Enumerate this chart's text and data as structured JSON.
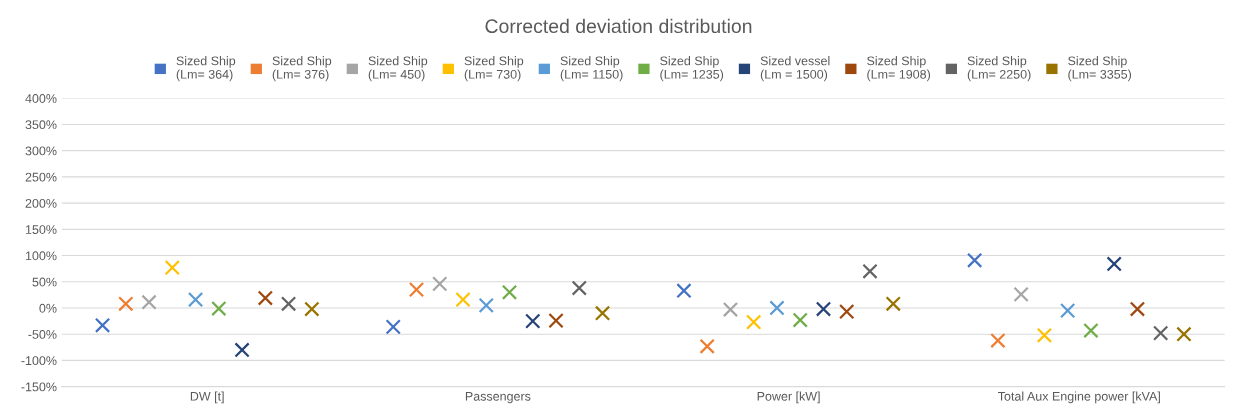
{
  "chart_data": {
    "type": "scatter",
    "title": "Corrected deviation distribution",
    "categories": [
      "DW [t]",
      "Passengers",
      "Power [kW]",
      "Total Aux Engine power [kVA]"
    ],
    "series": [
      {
        "name": "Sized Ship\n(Lm= 364)",
        "color": "#4472c4",
        "values": [
          -33,
          -36,
          33,
          91
        ]
      },
      {
        "name": "Sized Ship\n(Lm= 376)",
        "color": "#ed7d31",
        "values": [
          8,
          35,
          -73,
          -62
        ]
      },
      {
        "name": "Sized Ship\n(Lm= 450)",
        "color": "#a5a5a5",
        "values": [
          11,
          46,
          -3,
          26
        ]
      },
      {
        "name": "Sized Ship\n(Lm= 730)",
        "color": "#ffc000",
        "values": [
          77,
          16,
          -27,
          -52
        ]
      },
      {
        "name": "Sized Ship\n(Lm= 1150)",
        "color": "#5b9bd5",
        "values": [
          16,
          5,
          0,
          -5
        ]
      },
      {
        "name": "Sized Ship\n(Lm= 1235)",
        "color": "#70ad47",
        "values": [
          -1,
          30,
          -23,
          -43
        ]
      },
      {
        "name": "Sized vessel\n(Lm = 1500)",
        "color": "#264478",
        "values": [
          -80,
          -25,
          -2,
          84
        ]
      },
      {
        "name": "Sized Ship\n(Lm= 1908)",
        "color": "#9e480e",
        "values": [
          19,
          -24,
          -7,
          -2
        ]
      },
      {
        "name": "Sized Ship\n(Lm= 2250)",
        "color": "#636363",
        "values": [
          8,
          38,
          70,
          -48
        ]
      },
      {
        "name": "Sized Ship\n(Lm= 3355)",
        "color": "#997300",
        "values": [
          -2,
          -10,
          8,
          -50
        ]
      }
    ],
    "ylim": [
      -150,
      400
    ],
    "yticks": [
      {
        "value": -150,
        "label": "-150%"
      },
      {
        "value": -100,
        "label": "-100%"
      },
      {
        "value": -50,
        "label": "-50%"
      },
      {
        "value": 0,
        "label": "0%"
      },
      {
        "value": 50,
        "label": "50%"
      },
      {
        "value": 100,
        "label": "100%"
      },
      {
        "value": 150,
        "label": "150%"
      },
      {
        "value": 200,
        "label": "200%"
      },
      {
        "value": 250,
        "label": "250%"
      },
      {
        "value": 300,
        "label": "300%"
      },
      {
        "value": 350,
        "label": "350%"
      },
      {
        "value": 400,
        "label": "400%"
      }
    ],
    "grid": "y",
    "legend": "top",
    "marker": "cross"
  }
}
